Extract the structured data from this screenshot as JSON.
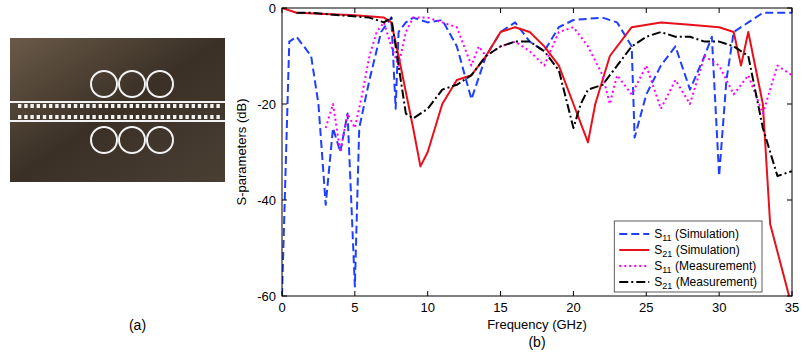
{
  "chart_data": [
    {
      "type": "photo",
      "label": "(a)"
    },
    {
      "type": "line",
      "label": "(b)",
      "xlabel": "Frequency (GHz)",
      "ylabel": "S-parameters (dB)",
      "xlim": [
        0,
        35
      ],
      "xticks": [
        0,
        5,
        10,
        15,
        20,
        25,
        30,
        35
      ],
      "ylim": [
        -60,
        0
      ],
      "yticks": [
        -60,
        -40,
        -20,
        0
      ],
      "grid": false,
      "legend": "lower right",
      "series": [
        {
          "name": "S11 (Simulation)",
          "color": "#1f3fff",
          "line_style": "dashed",
          "x": [
            0,
            0.5,
            1,
            2,
            2.5,
            3,
            3.5,
            4,
            4.5,
            5,
            5.3,
            6,
            6.8,
            7.5,
            7.8,
            8,
            8.5,
            9,
            10,
            11,
            12,
            13,
            14,
            15,
            16,
            17,
            18,
            19,
            20,
            22,
            23,
            24,
            24.2,
            25,
            26,
            27,
            28,
            29,
            29.5,
            30,
            30.5,
            31,
            32,
            33,
            35
          ],
          "values": [
            -60,
            -7,
            -6,
            -10,
            -20,
            -41,
            -25,
            -30,
            -22,
            -58,
            -25,
            -15,
            -5,
            -2,
            -21,
            -5,
            -3,
            -2,
            -3,
            -2.5,
            -8,
            -19,
            -10,
            -5,
            -3,
            -7,
            -9,
            -4,
            -2.5,
            -2,
            -3,
            -8,
            -27,
            -18,
            -12,
            -8,
            -17,
            -10,
            -6,
            -35,
            -15,
            -5,
            -3,
            -1,
            -1
          ]
        },
        {
          "name": "S21 (Simulation)",
          "color": "#e8101a",
          "line_style": "solid",
          "x": [
            0,
            1,
            5,
            7,
            7.5,
            8,
            9,
            9.5,
            10,
            11,
            12,
            13,
            14,
            15,
            16,
            17,
            18,
            19,
            20,
            21,
            21.5,
            22.5,
            24,
            26,
            28,
            30,
            31,
            31.5,
            32,
            33,
            33.5,
            34.8
          ],
          "values": [
            0,
            -1,
            -1.5,
            -2,
            -3,
            -10,
            -25,
            -33,
            -30,
            -20,
            -15,
            -14,
            -10,
            -5,
            -4,
            -5,
            -8,
            -12,
            -20,
            -28,
            -20,
            -10,
            -4,
            -3,
            -3.5,
            -4,
            -5,
            -12,
            -5,
            -20,
            -45,
            -60
          ]
        },
        {
          "name": "S11 (Measurement)",
          "color": "#ff00ff",
          "line_style": "dotted",
          "x": [
            3,
            3.5,
            4,
            4.5,
            5,
            5.5,
            6,
            6.5,
            7,
            7.5,
            8,
            8.5,
            9,
            10,
            11,
            12,
            13,
            13.5,
            14,
            15,
            16,
            17,
            18,
            19,
            20,
            21,
            22,
            22.5,
            23,
            24,
            25,
            26,
            27,
            28,
            29,
            30,
            31,
            32,
            33,
            34,
            35
          ],
          "values": [
            -25,
            -20,
            -30,
            -22,
            -25,
            -18,
            -10,
            -5,
            -3,
            -8,
            -12,
            -5,
            -2,
            -2,
            -3,
            -4,
            -12,
            -8,
            -10,
            -8,
            -7,
            -9,
            -12,
            -5,
            -4,
            -8,
            -14,
            -20,
            -14,
            -18,
            -12,
            -21,
            -15,
            -20,
            -10,
            -12,
            -18,
            -14,
            -22,
            -12,
            -14
          ]
        },
        {
          "name": "S21 (Measurement)",
          "color": "#000000",
          "line_style": "dashdot",
          "x": [
            1,
            2,
            4,
            6,
            7,
            7.5,
            8,
            8.5,
            9,
            10,
            11,
            12,
            13,
            14,
            15,
            16,
            17,
            18,
            19,
            20,
            20.5,
            21,
            22,
            23,
            24,
            25,
            26,
            27,
            28,
            29,
            30,
            31,
            32,
            33,
            34,
            35
          ],
          "values": [
            -1,
            -1,
            -1.5,
            -2,
            -3,
            -2,
            -12,
            -22,
            -23,
            -21,
            -17,
            -16,
            -14,
            -10,
            -8,
            -7,
            -7,
            -9,
            -13,
            -25,
            -20,
            -17,
            -16,
            -12,
            -8,
            -6,
            -5,
            -6,
            -6,
            -7,
            -7,
            -8,
            -10,
            -25,
            -35,
            -34
          ]
        }
      ]
    }
  ]
}
